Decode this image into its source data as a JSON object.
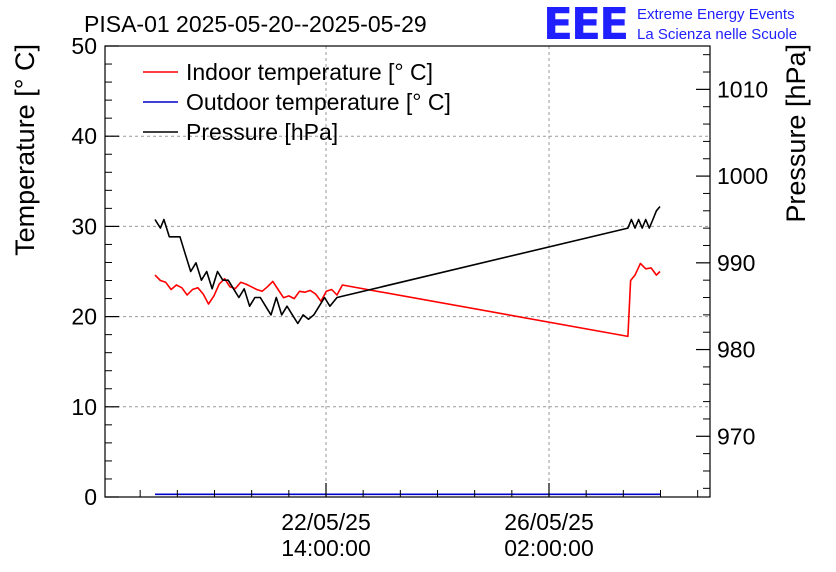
{
  "chart_data": {
    "type": "line",
    "title": "PISA-01 2025-05-20--2025-05-29",
    "ylabel": "Temperature [° C]",
    "y2label": "Pressure [hPa]",
    "ylim": [
      0,
      50
    ],
    "y2lim": [
      963,
      1015
    ],
    "y_ticks": [
      "0",
      "10",
      "20",
      "30",
      "40",
      "50"
    ],
    "y2_ticks": [
      "970",
      "980",
      "990",
      "1000",
      "1010"
    ],
    "x_tick_labels": [
      {
        "date": "22/05/25",
        "time": "14:00:00"
      },
      {
        "date": "26/05/25",
        "time": "02:00:00"
      }
    ],
    "grid": true,
    "legend_position": "top-left",
    "series": [
      {
        "name": "Indoor temperature [° C]",
        "axis": "left",
        "color": "#ff0000",
        "points": [
          [
            0.0,
            24.6
          ],
          [
            0.3,
            24.0
          ],
          [
            0.6,
            23.8
          ],
          [
            0.9,
            23.0
          ],
          [
            1.2,
            23.5
          ],
          [
            1.5,
            23.2
          ],
          [
            1.8,
            22.4
          ],
          [
            2.1,
            23.0
          ],
          [
            2.4,
            23.2
          ],
          [
            2.7,
            22.5
          ],
          [
            3.0,
            21.4
          ],
          [
            3.3,
            22.3
          ],
          [
            3.6,
            23.6
          ],
          [
            3.9,
            24.2
          ],
          [
            4.2,
            23.3
          ],
          [
            4.5,
            23.1
          ],
          [
            4.8,
            23.8
          ],
          [
            5.1,
            23.6
          ],
          [
            5.4,
            23.3
          ],
          [
            5.7,
            23.0
          ],
          [
            6.0,
            22.8
          ],
          [
            6.3,
            23.3
          ],
          [
            6.6,
            23.9
          ],
          [
            6.9,
            23.0
          ],
          [
            7.2,
            22.1
          ],
          [
            7.5,
            22.3
          ],
          [
            7.8,
            22.0
          ],
          [
            8.1,
            22.8
          ],
          [
            8.4,
            22.7
          ],
          [
            8.7,
            22.9
          ],
          [
            9.0,
            22.5
          ],
          [
            9.3,
            21.7
          ],
          [
            9.6,
            22.8
          ],
          [
            9.9,
            23.0
          ],
          [
            10.2,
            22.4
          ],
          [
            10.5,
            23.5
          ],
          [
            26.5,
            17.8
          ],
          [
            26.65,
            24.0
          ],
          [
            26.9,
            24.6
          ],
          [
            27.2,
            25.9
          ],
          [
            27.5,
            25.3
          ],
          [
            27.8,
            25.4
          ],
          [
            28.1,
            24.6
          ],
          [
            28.3,
            25.0
          ]
        ]
      },
      {
        "name": "Outdoor temperature [° C]",
        "axis": "left",
        "color": "#0000cc",
        "points": [
          [
            0.0,
            0.3
          ],
          [
            28.3,
            0.3
          ]
        ]
      },
      {
        "name": "Pressure [hPa]",
        "axis": "right",
        "color": "#000000",
        "points": [
          [
            0.0,
            995.0
          ],
          [
            0.3,
            994.0
          ],
          [
            0.5,
            995.0
          ],
          [
            0.8,
            993.0
          ],
          [
            1.1,
            993.0
          ],
          [
            1.4,
            993.0
          ],
          [
            1.7,
            991.0
          ],
          [
            2.0,
            989.0
          ],
          [
            2.3,
            990.0
          ],
          [
            2.6,
            988.0
          ],
          [
            2.9,
            989.0
          ],
          [
            3.2,
            987.0
          ],
          [
            3.5,
            989.0
          ],
          [
            3.8,
            988.0
          ],
          [
            4.1,
            988.0
          ],
          [
            4.4,
            987.0
          ],
          [
            4.7,
            986.0
          ],
          [
            5.0,
            987.0
          ],
          [
            5.3,
            985.0
          ],
          [
            5.6,
            986.0
          ],
          [
            5.9,
            986.0
          ],
          [
            6.2,
            985.0
          ],
          [
            6.5,
            984.0
          ],
          [
            6.8,
            986.0
          ],
          [
            7.1,
            984.0
          ],
          [
            7.4,
            985.0
          ],
          [
            7.7,
            984.0
          ],
          [
            8.0,
            983.0
          ],
          [
            8.3,
            984.0
          ],
          [
            8.6,
            983.5
          ],
          [
            8.9,
            984.0
          ],
          [
            9.2,
            985.0
          ],
          [
            9.5,
            986.0
          ],
          [
            9.8,
            985.0
          ],
          [
            10.2,
            986.0
          ],
          [
            26.5,
            994.0
          ],
          [
            26.7,
            995.0
          ],
          [
            26.9,
            994.0
          ],
          [
            27.1,
            995.0
          ],
          [
            27.3,
            994.0
          ],
          [
            27.5,
            995.0
          ],
          [
            27.7,
            994.0
          ],
          [
            27.9,
            995.0
          ],
          [
            28.1,
            996.0
          ],
          [
            28.3,
            996.5
          ]
        ]
      }
    ]
  },
  "logo": {
    "mark": "EEE",
    "line1": "Extreme Energy Events",
    "line2": "La Scienza nelle Scuole"
  }
}
